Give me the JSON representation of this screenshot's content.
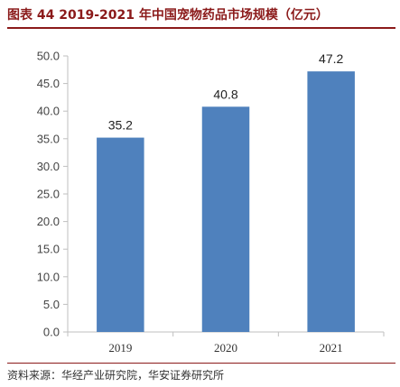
{
  "header": {
    "title": "图表 44 2019-2021 年中国宠物药品市场规模（亿元）"
  },
  "footer": {
    "source": "资料来源：华经产业研究院，华安证券研究所"
  },
  "colors": {
    "bar": "#4f81bd",
    "title": "#8b1a1a",
    "axis": "#bfbfbf"
  },
  "chart_data": {
    "type": "bar",
    "title": "图表 44 2019-2021 年中国宠物药品市场规模（亿元）",
    "categories": [
      "2019",
      "2020",
      "2021"
    ],
    "values": [
      35.2,
      40.8,
      47.2
    ],
    "data_labels": [
      "35.2",
      "40.8",
      "47.2"
    ],
    "ylim": [
      0,
      50
    ],
    "yticks": [
      "0.0",
      "5.0",
      "10.0",
      "15.0",
      "20.0",
      "25.0",
      "30.0",
      "35.0",
      "40.0",
      "45.0",
      "50.0"
    ],
    "grid": false,
    "legend": "none"
  }
}
